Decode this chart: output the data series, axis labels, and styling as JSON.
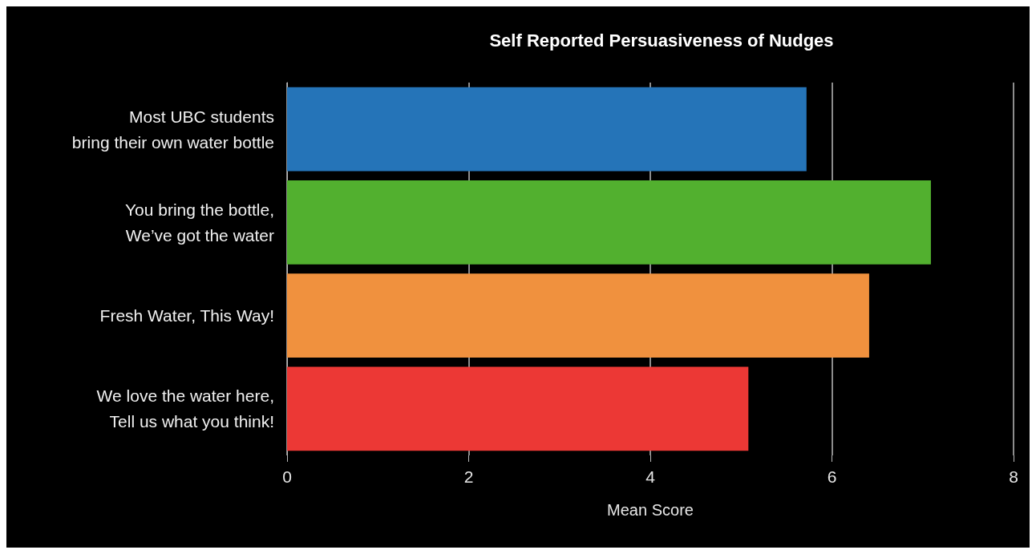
{
  "chart_data": {
    "type": "bar",
    "orientation": "horizontal",
    "title": "Self Reported Persuasiveness of Nudges",
    "xlabel": "Mean Score",
    "categories": [
      "Most UBC students\nbring their own water bottle",
      "You bring the bottle,\nWe’ve got the water",
      "Fresh Water, This Way!",
      "We love the water here,\nTell us what you think!"
    ],
    "values": [
      5.72,
      7.09,
      6.41,
      5.08
    ],
    "colors": [
      "#2574b8",
      "#52b02f",
      "#f0913e",
      "#ec3835"
    ],
    "xlim": [
      0,
      8
    ],
    "xticks": [
      0,
      2,
      4,
      6,
      8
    ],
    "grid": "x"
  }
}
